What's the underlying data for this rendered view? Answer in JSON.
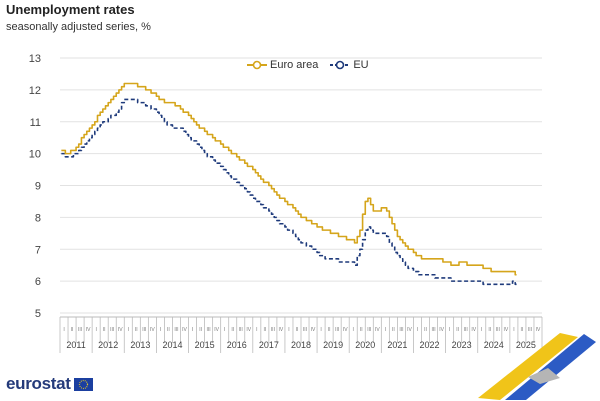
{
  "title": "Unemployment rates",
  "subtitle": "seasonally adjusted series, %",
  "legend": {
    "euro_area": "Euro area",
    "eu": "EU"
  },
  "logo_text": "eurostat",
  "colors": {
    "euro_area": "#d5a51b",
    "eu": "#1e3a7b",
    "grid": "#e2e2e2",
    "axis_text": "#444444"
  },
  "chart_data": {
    "type": "line",
    "title": "Unemployment rates",
    "subtitle": "seasonally adjusted series, %",
    "xlabel": "",
    "ylabel": "",
    "ylim": [
      5,
      13
    ],
    "yticks": [
      5,
      6,
      7,
      8,
      9,
      10,
      11,
      12,
      13
    ],
    "quarter_labels": [
      "I",
      "II",
      "III",
      "IV"
    ],
    "years": [
      "2011",
      "2012",
      "2013",
      "2014",
      "2015",
      "2016",
      "2017",
      "2018",
      "2019",
      "2020",
      "2021",
      "2022",
      "2023",
      "2024",
      "2025"
    ],
    "x_start": "2011-01",
    "x_end": "2025-03",
    "legend_position": "top-center",
    "grid": true,
    "series": [
      {
        "name": "Euro area",
        "points": [
          [
            "2011-01",
            10.1
          ],
          [
            "2011-04",
            10.0
          ],
          [
            "2011-07",
            10.2
          ],
          [
            "2011-10",
            10.6
          ],
          [
            "2012-01",
            10.9
          ],
          [
            "2012-04",
            11.3
          ],
          [
            "2012-07",
            11.6
          ],
          [
            "2012-10",
            11.9
          ],
          [
            "2013-01",
            12.2
          ],
          [
            "2013-04",
            12.2
          ],
          [
            "2013-07",
            12.1
          ],
          [
            "2013-10",
            12.0
          ],
          [
            "2014-01",
            11.8
          ],
          [
            "2014-04",
            11.6
          ],
          [
            "2014-07",
            11.6
          ],
          [
            "2014-10",
            11.4
          ],
          [
            "2015-01",
            11.2
          ],
          [
            "2015-04",
            10.9
          ],
          [
            "2015-07",
            10.7
          ],
          [
            "2015-10",
            10.5
          ],
          [
            "2016-01",
            10.3
          ],
          [
            "2016-04",
            10.1
          ],
          [
            "2016-07",
            9.9
          ],
          [
            "2016-10",
            9.7
          ],
          [
            "2017-01",
            9.5
          ],
          [
            "2017-04",
            9.2
          ],
          [
            "2017-07",
            9.0
          ],
          [
            "2017-10",
            8.7
          ],
          [
            "2018-01",
            8.5
          ],
          [
            "2018-04",
            8.3
          ],
          [
            "2018-07",
            8.0
          ],
          [
            "2018-10",
            7.9
          ],
          [
            "2019-01",
            7.7
          ],
          [
            "2019-04",
            7.6
          ],
          [
            "2019-07",
            7.5
          ],
          [
            "2019-10",
            7.4
          ],
          [
            "2020-01",
            7.3
          ],
          [
            "2020-03",
            7.2
          ],
          [
            "2020-05",
            7.6
          ],
          [
            "2020-07",
            8.5
          ],
          [
            "2020-08",
            8.6
          ],
          [
            "2020-10",
            8.2
          ],
          [
            "2020-12",
            8.2
          ],
          [
            "2021-02",
            8.3
          ],
          [
            "2021-04",
            8.0
          ],
          [
            "2021-07",
            7.4
          ],
          [
            "2021-10",
            7.1
          ],
          [
            "2022-01",
            6.9
          ],
          [
            "2022-04",
            6.7
          ],
          [
            "2022-07",
            6.7
          ],
          [
            "2022-10",
            6.7
          ],
          [
            "2023-01",
            6.6
          ],
          [
            "2023-04",
            6.5
          ],
          [
            "2023-07",
            6.6
          ],
          [
            "2023-10",
            6.5
          ],
          [
            "2024-01",
            6.5
          ],
          [
            "2024-04",
            6.4
          ],
          [
            "2024-07",
            6.3
          ],
          [
            "2024-10",
            6.3
          ],
          [
            "2025-01",
            6.3
          ],
          [
            "2025-02",
            6.3
          ],
          [
            "2025-03",
            6.2
          ]
        ]
      },
      {
        "name": "EU",
        "points": [
          [
            "2011-01",
            10.0
          ],
          [
            "2011-04",
            9.9
          ],
          [
            "2011-07",
            10.0
          ],
          [
            "2011-10",
            10.3
          ],
          [
            "2012-01",
            10.6
          ],
          [
            "2012-04",
            10.9
          ],
          [
            "2012-07",
            11.1
          ],
          [
            "2012-10",
            11.3
          ],
          [
            "2013-01",
            11.7
          ],
          [
            "2013-04",
            11.7
          ],
          [
            "2013-07",
            11.6
          ],
          [
            "2013-10",
            11.5
          ],
          [
            "2014-01",
            11.3
          ],
          [
            "2014-04",
            11.0
          ],
          [
            "2014-07",
            10.8
          ],
          [
            "2014-10",
            10.8
          ],
          [
            "2015-01",
            10.5
          ],
          [
            "2015-04",
            10.3
          ],
          [
            "2015-07",
            10.0
          ],
          [
            "2015-10",
            9.8
          ],
          [
            "2016-01",
            9.6
          ],
          [
            "2016-04",
            9.3
          ],
          [
            "2016-07",
            9.1
          ],
          [
            "2016-10",
            8.9
          ],
          [
            "2017-01",
            8.6
          ],
          [
            "2017-04",
            8.4
          ],
          [
            "2017-07",
            8.2
          ],
          [
            "2017-10",
            7.9
          ],
          [
            "2018-01",
            7.7
          ],
          [
            "2018-04",
            7.5
          ],
          [
            "2018-07",
            7.2
          ],
          [
            "2018-10",
            7.1
          ],
          [
            "2019-01",
            6.9
          ],
          [
            "2019-04",
            6.7
          ],
          [
            "2019-07",
            6.7
          ],
          [
            "2019-10",
            6.6
          ],
          [
            "2020-01",
            6.6
          ],
          [
            "2020-03",
            6.5
          ],
          [
            "2020-05",
            7.0
          ],
          [
            "2020-07",
            7.6
          ],
          [
            "2020-08",
            7.7
          ],
          [
            "2020-10",
            7.5
          ],
          [
            "2020-12",
            7.5
          ],
          [
            "2021-02",
            7.5
          ],
          [
            "2021-04",
            7.2
          ],
          [
            "2021-07",
            6.8
          ],
          [
            "2021-10",
            6.5
          ],
          [
            "2022-01",
            6.3
          ],
          [
            "2022-04",
            6.2
          ],
          [
            "2022-07",
            6.2
          ],
          [
            "2022-10",
            6.1
          ],
          [
            "2023-01",
            6.1
          ],
          [
            "2023-04",
            6.0
          ],
          [
            "2023-07",
            6.0
          ],
          [
            "2023-10",
            6.0
          ],
          [
            "2024-01",
            6.0
          ],
          [
            "2024-04",
            5.9
          ],
          [
            "2024-07",
            5.9
          ],
          [
            "2024-10",
            5.9
          ],
          [
            "2025-01",
            5.9
          ],
          [
            "2025-02",
            6.0
          ],
          [
            "2025-03",
            5.9
          ]
        ]
      }
    ]
  }
}
